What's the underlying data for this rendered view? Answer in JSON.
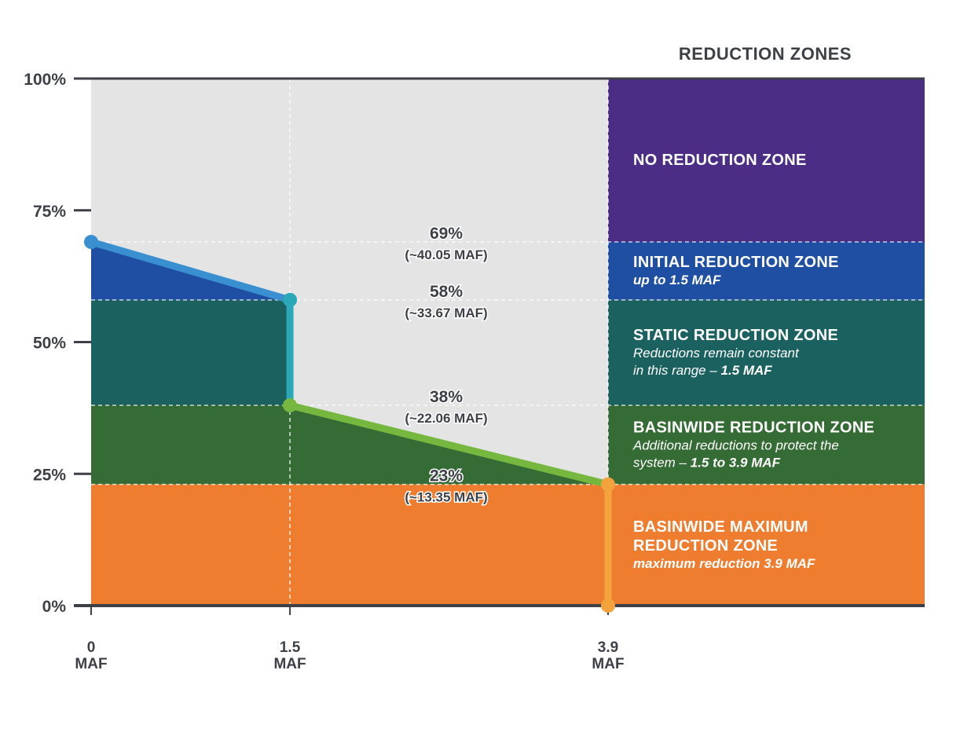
{
  "chart_data": {
    "type": "line",
    "title": "REDUCTION ZONES",
    "xlabel": "",
    "ylabel": "",
    "ylim": [
      0,
      100
    ],
    "xlim": [
      0,
      3.9
    ],
    "y_ticks": [
      "100%",
      "75%",
      "50%",
      "25%",
      "0%"
    ],
    "y_tick_values": [
      100,
      75,
      50,
      25,
      0
    ],
    "x_ticks": [
      {
        "value": 0,
        "top": "0",
        "bottom": "MAF"
      },
      {
        "value": 1.5,
        "top": "1.5",
        "bottom": "MAF"
      },
      {
        "value": 3.9,
        "top": "3.9",
        "bottom": "MAF"
      }
    ],
    "grid": true,
    "line_segments": [
      {
        "from": [
          0,
          69
        ],
        "to": [
          1.5,
          58
        ],
        "color": "#3a8fd1"
      },
      {
        "from": [
          1.5,
          58
        ],
        "to": [
          1.5,
          38
        ],
        "color": "#2aa8b7"
      },
      {
        "from": [
          1.5,
          38
        ],
        "to": [
          3.9,
          23
        ],
        "color": "#76b83f"
      },
      {
        "from": [
          3.9,
          23
        ],
        "to": [
          3.9,
          0
        ],
        "color": "#f3a33c"
      }
    ],
    "points": [
      {
        "x": 0,
        "y": 69,
        "color": "#3a8fd1"
      },
      {
        "x": 1.5,
        "y": 58,
        "color": "#2aa8b7"
      },
      {
        "x": 1.5,
        "y": 38,
        "color": "#76b83f"
      },
      {
        "x": 3.9,
        "y": 23,
        "color": "#f3a33c"
      },
      {
        "x": 3.9,
        "y": 0,
        "color": "#f3a33c"
      }
    ],
    "annotations": [
      {
        "y": 69,
        "pct": "69%",
        "maf": "(~40.05 MAF)"
      },
      {
        "y": 58,
        "pct": "58%",
        "maf": "(~33.67 MAF)"
      },
      {
        "y": 38,
        "pct": "38%",
        "maf": "(~22.06 MAF)"
      },
      {
        "y": 23,
        "pct": "23%",
        "maf": "(~13.35 MAF)"
      }
    ],
    "zones": [
      {
        "name": "no-reduction",
        "y_from": 69,
        "y_to": 100,
        "color": "#4b2d85",
        "title": [
          "NO REDUCTION ZONE"
        ],
        "subtitle": []
      },
      {
        "name": "initial-reduction",
        "y_from": 58,
        "y_to": 69,
        "color": "#1f4fa3",
        "title": [
          "INITIAL REDUCTION ZONE"
        ],
        "subtitle": [
          [
            {
              "t": "up to 1.5 MAF",
              "b": true
            }
          ]
        ]
      },
      {
        "name": "static-reduction",
        "y_from": 38,
        "y_to": 58,
        "color": "#1a615f",
        "title": [
          "STATIC REDUCTION ZONE"
        ],
        "subtitle": [
          [
            {
              "t": "Reductions remain constant",
              "b": false
            }
          ],
          [
            {
              "t": "in this range – ",
              "b": false
            },
            {
              "t": "1.5 MAF",
              "b": true
            }
          ]
        ]
      },
      {
        "name": "basinwide-reduction",
        "y_from": 23,
        "y_to": 38,
        "color": "#356b34",
        "title": [
          "BASINWIDE REDUCTION ZONE"
        ],
        "subtitle": [
          [
            {
              "t": "Additional reductions to protect the",
              "b": false
            }
          ],
          [
            {
              "t": "system – ",
              "b": false
            },
            {
              "t": "1.5 to 3.9 MAF",
              "b": true
            }
          ]
        ]
      },
      {
        "name": "basinwide-maximum",
        "y_from": 0,
        "y_to": 23,
        "color": "#ef7d30",
        "title": [
          "BASINWIDE MAXIMUM",
          "REDUCTION ZONE"
        ],
        "subtitle": [
          [
            {
              "t": "maximum reduction 3.9 MAF",
              "b": true
            }
          ]
        ]
      }
    ],
    "colors": {
      "background_area": "#e4e4e5",
      "axis": "#3d4147",
      "fill_initial": "#1f4fa3",
      "fill_static": "#1a615f",
      "fill_basinwide": "#356b34",
      "fill_maximum": "#ef7d30"
    }
  }
}
